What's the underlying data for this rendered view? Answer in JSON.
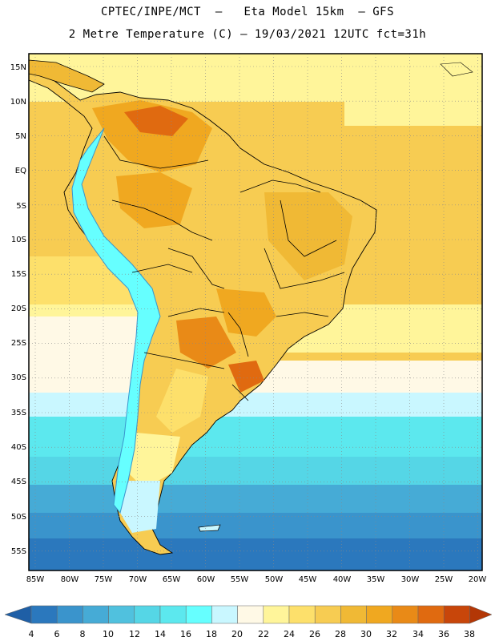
{
  "header": {
    "title_line1": "CPTEC/INPE/MCT  –   Eta Model 15km  – GFS",
    "title_line2": "2 Metre Temperature (C) – 19/03/2021 12UTC fct=31h"
  },
  "map": {
    "lat_labels": [
      "15N",
      "10N",
      "5N",
      "EQ",
      "5S",
      "10S",
      "15S",
      "20S",
      "25S",
      "30S",
      "35S",
      "40S",
      "45S",
      "50S",
      "55S"
    ],
    "lon_labels": [
      "85W",
      "80W",
      "75W",
      "70W",
      "65W",
      "60W",
      "55W",
      "50W",
      "45W",
      "40W",
      "35W",
      "30W",
      "25W",
      "20W"
    ]
  },
  "colorbar": {
    "labels": [
      "4",
      "6",
      "8",
      "10",
      "12",
      "14",
      "16",
      "18",
      "20",
      "22",
      "24",
      "26",
      "28",
      "30",
      "32",
      "34",
      "36",
      "38"
    ],
    "colors": [
      "#1f5fa6",
      "#2b78bd",
      "#3a94cc",
      "#46abd6",
      "#50c1de",
      "#55d6e6",
      "#5ce8ee",
      "#66ffff",
      "#c9f7ff",
      "#fff9e6",
      "#fff59a",
      "#fde06b",
      "#f7cc52",
      "#f0b935",
      "#f0a820",
      "#e98a17",
      "#e06a10",
      "#c8460a",
      "#b33706"
    ]
  }
}
